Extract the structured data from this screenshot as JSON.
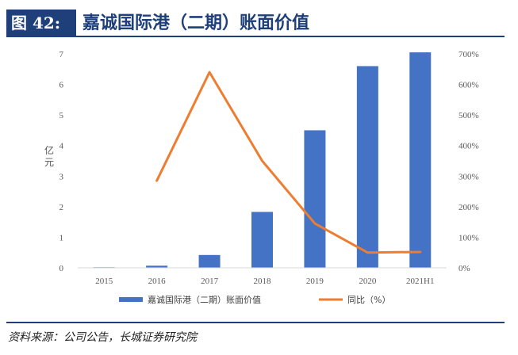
{
  "header": {
    "figure_label": "图 42:",
    "title": "嘉诚国际港（二期）账面价值"
  },
  "footer": {
    "source": "资料来源：公司公告，长城证券研究院"
  },
  "colors": {
    "bar": "#4472c4",
    "line": "#ed7d31",
    "header_bg": "#1f3f7a",
    "header_text": "#1f3f7a"
  },
  "chart_data": {
    "type": "bar",
    "categories": [
      "2015",
      "2016",
      "2017",
      "2018",
      "2019",
      "2020",
      "2021H1"
    ],
    "series": [
      {
        "name": "嘉诚国际港（二期）账面价值",
        "type": "bar",
        "axis": "left",
        "values": [
          0.02,
          0.07,
          0.42,
          1.83,
          4.5,
          6.6,
          7.05
        ]
      },
      {
        "name": "同比（%）",
        "type": "line",
        "axis": "right",
        "values": [
          null,
          285,
          640,
          350,
          145,
          50,
          52
        ]
      }
    ],
    "ylabel": "亿元",
    "ylim": [
      0,
      7
    ],
    "y_ticks": [
      "0",
      "1",
      "2",
      "3",
      "4",
      "5",
      "6",
      "7"
    ],
    "y2lim": [
      0,
      700
    ],
    "y2_ticks": [
      "0%",
      "100%",
      "200%",
      "300%",
      "400%",
      "500%",
      "600%",
      "700%"
    ],
    "legend_position": "bottom",
    "grid": false
  }
}
